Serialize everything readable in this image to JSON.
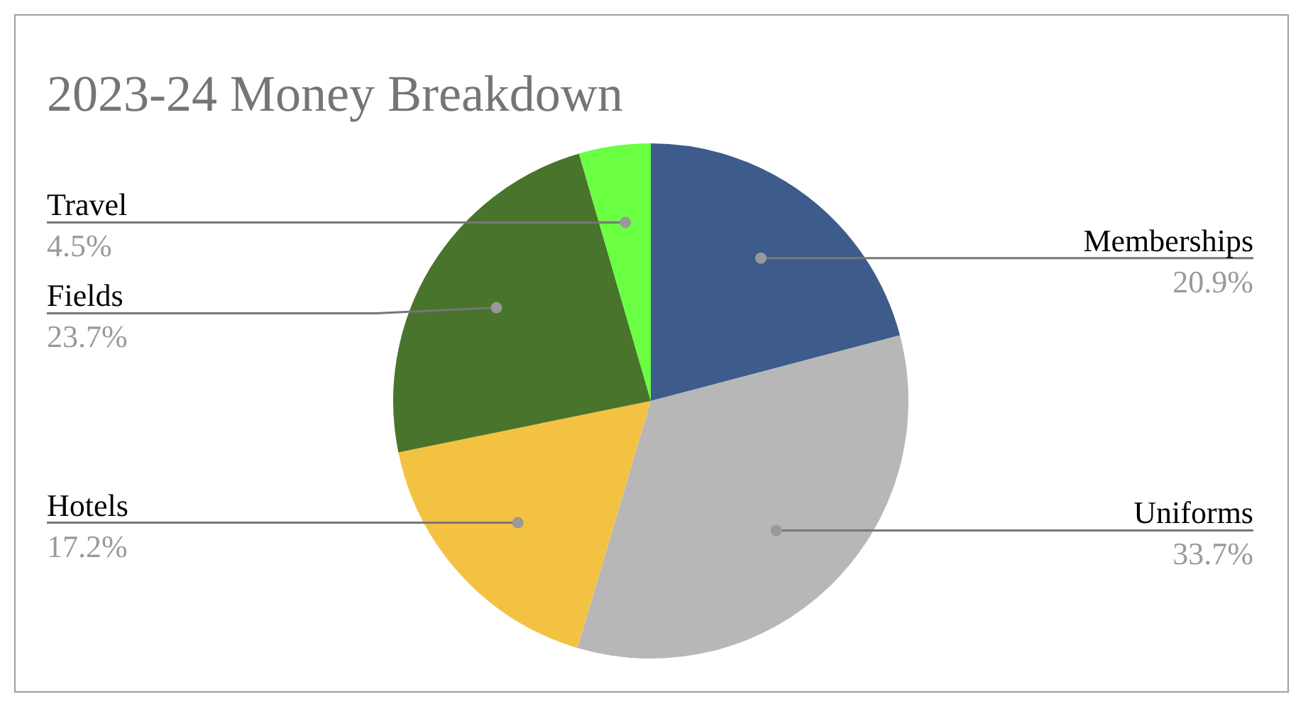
{
  "chart_data": {
    "type": "pie",
    "title": "2023-24 Money Breakdown",
    "categories": [
      "Memberships",
      "Uniforms",
      "Hotels",
      "Fields",
      "Travel"
    ],
    "values": [
      20.9,
      33.7,
      17.2,
      23.7,
      4.5
    ],
    "colors": [
      "#3d5c8c",
      "#b7b7b7",
      "#f4c242",
      "#48742c",
      "#6aff42"
    ],
    "value_labels": [
      "20.9%",
      "33.7%",
      "17.2%",
      "23.7%",
      "4.5%"
    ],
    "legend": false
  }
}
